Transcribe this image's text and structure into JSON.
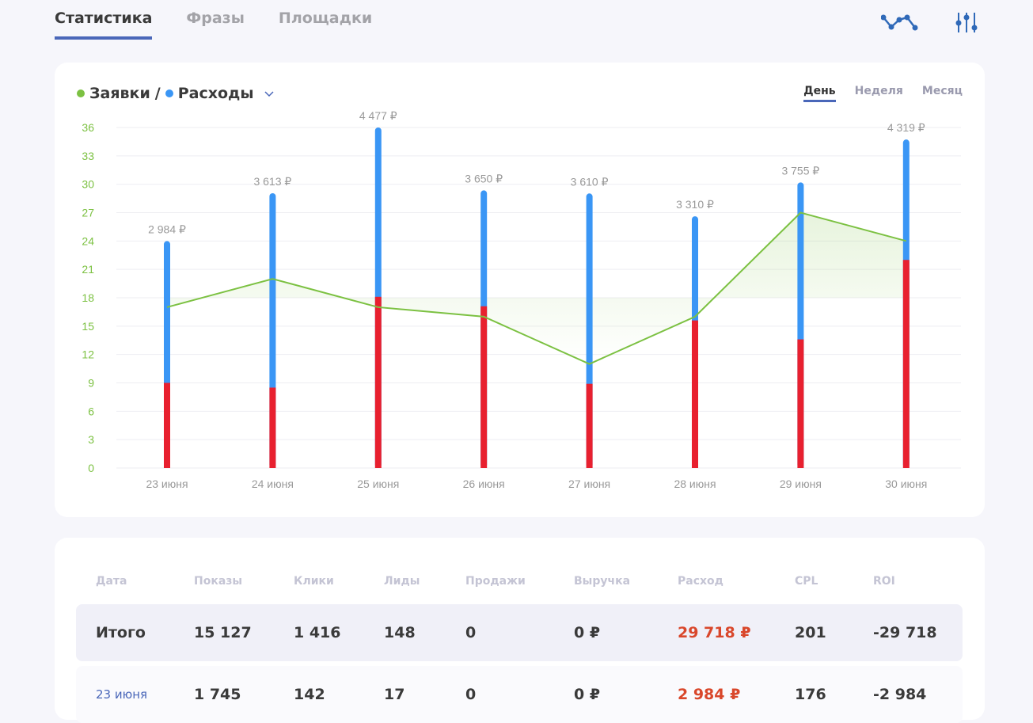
{
  "tabs": [
    {
      "label": "Статистика",
      "active": true
    },
    {
      "label": "Фразы"
    },
    {
      "label": "Площадки"
    }
  ],
  "icons": [
    "line-chart-icon",
    "sliders-icon"
  ],
  "chart_panel": {
    "legend": {
      "series1": "Заявки",
      "sep": "/",
      "series2": "Расходы"
    },
    "periods": [
      "День",
      "Неделя",
      "Месяц"
    ],
    "active_period": "День"
  },
  "colors": {
    "accent": "#4a67b9",
    "leads": "#7cc142",
    "spend": "#3a96f5",
    "red": "#e8202f",
    "negative": "#d9472b"
  },
  "chart_data": {
    "type": "bar+line",
    "categories": [
      "23 июня",
      "24 июня",
      "25 июня",
      "26 июня",
      "27 июня",
      "28 июня",
      "29 июня",
      "30 июня"
    ],
    "yticks": [
      0,
      3,
      6,
      9,
      12,
      15,
      18,
      21,
      24,
      27,
      30,
      33,
      36
    ],
    "ylim": [
      0,
      36
    ],
    "series": [
      {
        "name": "Расходы",
        "type": "bar",
        "values": [
          2984,
          3613,
          4477,
          3650,
          3610,
          3310,
          3755,
          4319
        ],
        "labels": [
          "2 984 ₽",
          "3 613 ₽",
          "4 477 ₽",
          "3 650 ₽",
          "3 610 ₽",
          "3 310 ₽",
          "3 755 ₽",
          "4 319 ₽"
        ],
        "scale_max": 4477
      },
      {
        "name": "red-segment",
        "type": "bar",
        "values": [
          9,
          8.5,
          18.1,
          17.1,
          8.9,
          15.6,
          13.6,
          22
        ]
      },
      {
        "name": "Заявки",
        "type": "line",
        "values": [
          17,
          20,
          17,
          16,
          11,
          16,
          27,
          24
        ]
      }
    ]
  },
  "table": {
    "headers": [
      "Дата",
      "Показы",
      "Клики",
      "Лиды",
      "Продажи",
      "Выручка",
      "Расход",
      "CPL",
      "ROI"
    ],
    "total": [
      "Итого",
      "15 127",
      "1 416",
      "148",
      "0",
      "0 ₽",
      "29 718 ₽",
      "201",
      "-29 718"
    ],
    "rows": [
      [
        "23 июня",
        "1 745",
        "142",
        "17",
        "0",
        "0 ₽",
        "2 984 ₽",
        "176",
        "-2 984"
      ]
    ]
  }
}
